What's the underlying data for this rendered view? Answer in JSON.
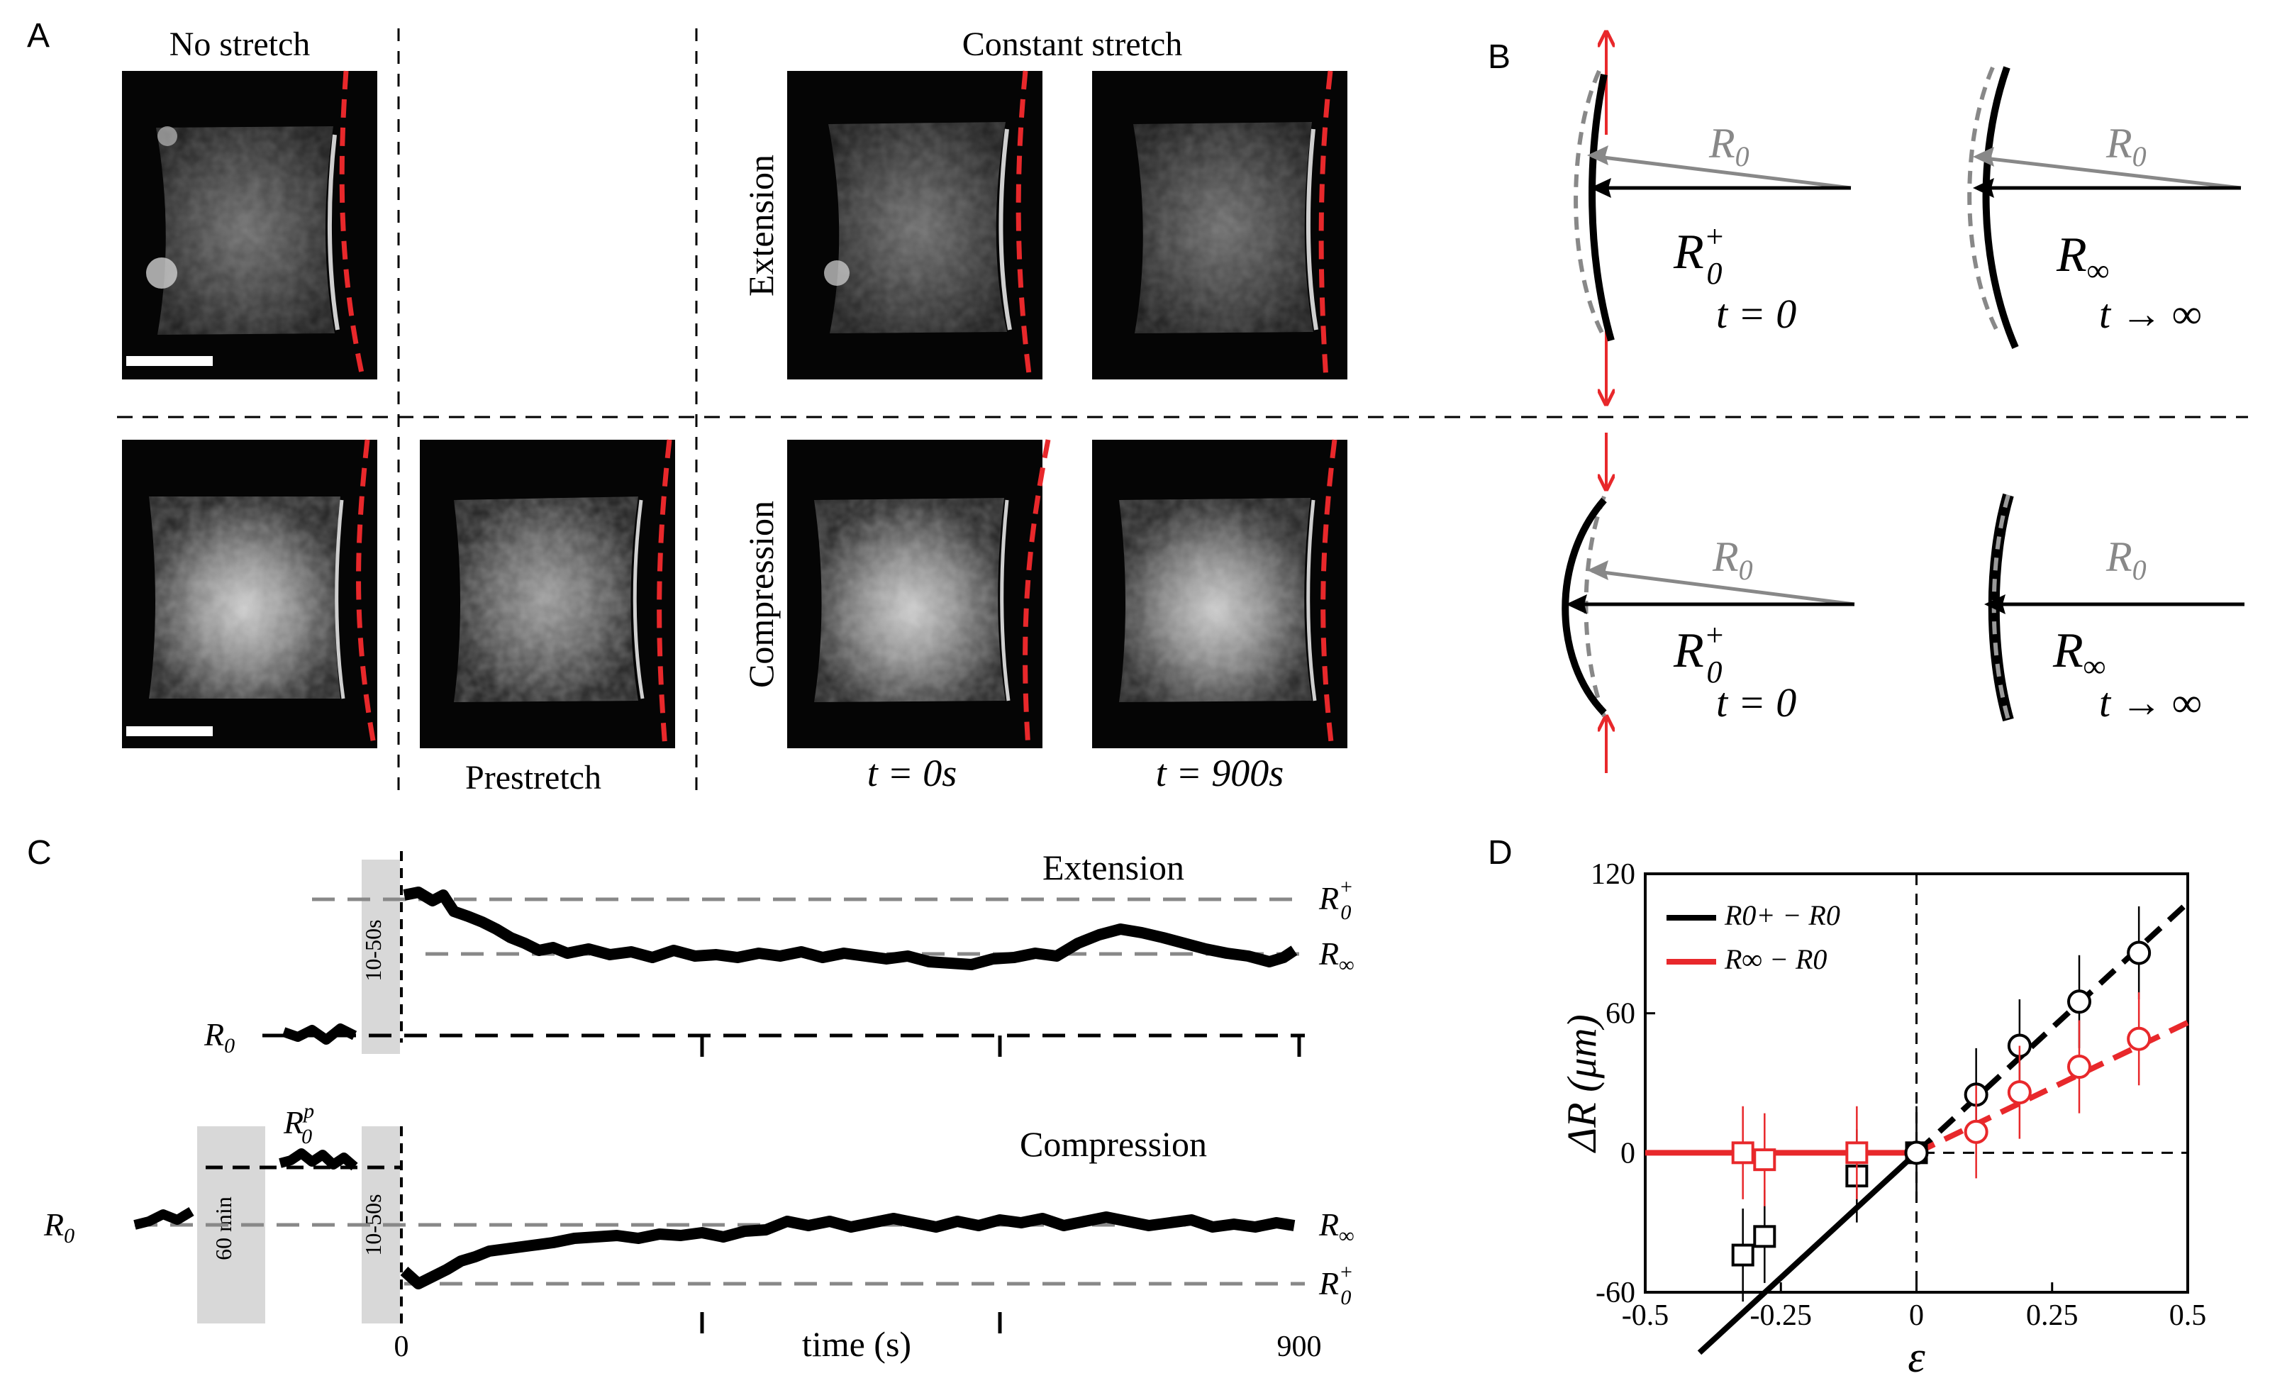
{
  "panel_labels": {
    "a": "A",
    "b": "B",
    "c": "C",
    "d": "D"
  },
  "panel_a": {
    "title_no_stretch": "No stretch",
    "title_constant": "Constant stretch",
    "row_extension": "Extension",
    "row_compression": "Compression",
    "caption_prestretch": "Prestretch",
    "time_0": "t = 0s",
    "time_900": "t = 900s"
  },
  "panel_b": {
    "r0": "R",
    "r0_sub": "0",
    "r0plus": "R",
    "r0plus_sup": "+",
    "r0plus_sub": "0",
    "rinf": "R",
    "rinf_sub": "∞",
    "t_zero": "t = 0",
    "t_inf": "t → ∞"
  },
  "panel_c": {
    "label_extension": "Extension",
    "label_compression": "Compression",
    "xlabel": "time (s)",
    "tick_0": "0",
    "tick_900": "900",
    "label_10_50s": "10-50s",
    "label_60min": "60 min",
    "r0": "R",
    "r0_sub": "0",
    "r0plus_sup": "+",
    "rinf_sub": "∞",
    "r0p_sup": "p"
  },
  "chart_data": {
    "type": "scatter",
    "title": "",
    "xlabel": "ε",
    "ylabel": "ΔR (μm)",
    "xlim": [
      -0.5,
      0.5
    ],
    "ylim": [
      -60,
      120
    ],
    "xticks": [
      "-0.5",
      "-0.25",
      "0",
      "0.25",
      "0.5"
    ],
    "yticks": [
      "-60",
      "0",
      "60",
      "120"
    ],
    "legend": [
      "R0+ − R0",
      "R∞ − R0"
    ],
    "legend_position": "top-left",
    "colors": {
      "black": "#000000",
      "red": "#e8282b"
    },
    "series": [
      {
        "name": "R0+ − R0 (compression)",
        "color": "#000000",
        "marker": "square",
        "points": [
          [
            -0.32,
            -44
          ],
          [
            -0.28,
            -36
          ],
          [
            -0.11,
            -10
          ],
          [
            0.0,
            0.0
          ]
        ]
      },
      {
        "name": "R0+ − R0 (extension)",
        "color": "#000000",
        "marker": "circle",
        "points": [
          [
            0.0,
            0.0
          ],
          [
            0.11,
            25
          ],
          [
            0.19,
            46
          ],
          [
            0.3,
            65
          ],
          [
            0.41,
            86
          ]
        ]
      },
      {
        "name": "R∞ − R0 (compression)",
        "color": "#e8282b",
        "marker": "square",
        "points": [
          [
            -0.32,
            0.0
          ],
          [
            -0.28,
            -3
          ],
          [
            -0.11,
            0.0
          ]
        ]
      },
      {
        "name": "R∞ − R0 (extension)",
        "color": "#e8282b",
        "marker": "circle",
        "points": [
          [
            0.11,
            9
          ],
          [
            0.19,
            26
          ],
          [
            0.3,
            37
          ],
          [
            0.41,
            49
          ]
        ]
      }
    ],
    "fits": [
      {
        "name": "black fit",
        "color": "#000000",
        "slope": 215,
        "solid_x": [
          -0.4,
          0.0
        ],
        "dashed_x": [
          0.0,
          0.5
        ]
      },
      {
        "name": "red fit (compression)",
        "color": "#e8282b",
        "flat": 0,
        "x": [
          -0.5,
          0.0
        ]
      },
      {
        "name": "red fit (extension)",
        "color": "#e8282b",
        "slope": 112,
        "x": [
          0.0,
          0.5
        ]
      }
    ]
  }
}
